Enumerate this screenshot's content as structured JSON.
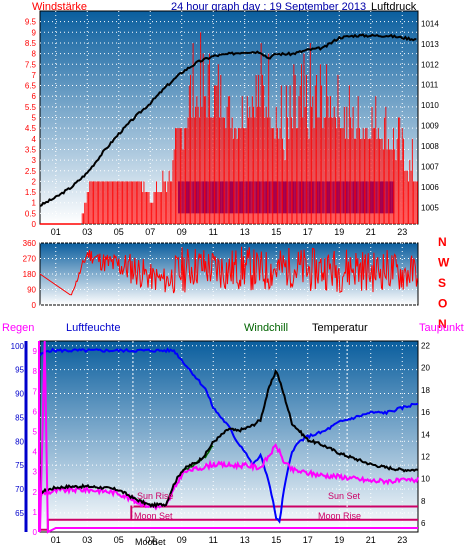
{
  "header": {
    "left_label": "Windstärke",
    "title": "24 hour graph day : 19 September 2013",
    "right_label": "Luftdruck"
  },
  "colors": {
    "wind": "#ff0000",
    "gust_blue": "#0000dd",
    "pressure": "#000000",
    "humidity": "#0000ff",
    "windchill": "#006400",
    "temperature": "#000000",
    "dewpoint": "#ff00ff",
    "sun": "#cc0066",
    "moon": "#cc0066",
    "grid": "#ffffff",
    "bg_top": "#0a5e9e",
    "bg_bottom": "#ffffff"
  },
  "time_ticks": [
    "01",
    "03",
    "05",
    "07",
    "09",
    "11",
    "13",
    "15",
    "17",
    "19",
    "21",
    "23"
  ],
  "chart_data": [
    {
      "id": "wind-pressure",
      "type": "bar",
      "title": "24 hour graph day : 19 September 2013",
      "left_axis": {
        "label": "Windstärke",
        "range": [
          0,
          10
        ],
        "ticks": [
          "0",
          "0.5",
          "1",
          "1.5",
          "2",
          "2.5",
          "3",
          "3.5",
          "4",
          "4.5",
          "5",
          "5.5",
          "6",
          "6.5",
          "7",
          "7.5",
          "8",
          "8.5",
          "9",
          "9.5"
        ]
      },
      "right_axis": {
        "label": "Luftdruck",
        "range": [
          1004.2,
          1014.6
        ],
        "ticks": [
          "1005",
          "1006",
          "1007",
          "1008",
          "1009",
          "1010",
          "1011",
          "1012",
          "1013",
          "1014"
        ]
      },
      "series": [
        {
          "name": "Windstärke",
          "axis": "left",
          "color": "#ff0000",
          "x": [
            0,
            2.6,
            3.2,
            4.5,
            5.5,
            6.2,
            7.2,
            8.5,
            9.5,
            10.5,
            11.5,
            12.5,
            13.5,
            14.5,
            15.5,
            16.5,
            17.5,
            18.5,
            19.5,
            20.5,
            21.5,
            22.5,
            23.5
          ],
          "y": [
            0,
            0,
            2,
            2,
            2,
            2,
            1,
            2,
            5,
            5,
            5,
            4,
            5,
            5,
            3,
            4,
            4,
            5,
            4,
            4,
            4,
            3,
            2
          ],
          "gust": [
            0,
            0,
            2,
            2,
            2,
            2,
            2,
            4,
            9,
            9,
            8,
            6,
            9,
            9,
            7,
            8,
            9,
            7,
            7,
            6,
            7,
            6,
            4
          ]
        },
        {
          "name": "Luftdruck",
          "axis": "right",
          "color": "#000000",
          "x": [
            0,
            1,
            2,
            3,
            4,
            5,
            6,
            7,
            8,
            9,
            10,
            11,
            12,
            13,
            14,
            14.5,
            15,
            16,
            17,
            18,
            19,
            20,
            21,
            22,
            23,
            24
          ],
          "y": [
            1005.1,
            1005.5,
            1006.0,
            1006.7,
            1007.7,
            1008.6,
            1009.4,
            1010.1,
            1010.9,
            1011.6,
            1012.1,
            1012.4,
            1012.5,
            1012.6,
            1012.6,
            1012.3,
            1012.5,
            1012.5,
            1012.7,
            1012.8,
            1013.3,
            1013.4,
            1013.4,
            1013.4,
            1013.3,
            1013.2
          ]
        }
      ]
    },
    {
      "id": "wind-direction",
      "type": "line",
      "left_axis": {
        "range": [
          0,
          360
        ],
        "ticks": [
          "0",
          "90",
          "180",
          "270",
          "360"
        ]
      },
      "direction_labels": [
        "N",
        "W",
        "S",
        "O",
        "N"
      ],
      "series": [
        {
          "name": "Windrichtung",
          "color": "#ff0000",
          "x": [
            0,
            2,
            3,
            4,
            5,
            6,
            7,
            8,
            9,
            10,
            11,
            12,
            13,
            14,
            15,
            16,
            17,
            18,
            19,
            20,
            21,
            22,
            23,
            24
          ],
          "y": [
            180,
            60,
            300,
            250,
            230,
            210,
            160,
            140,
            200,
            230,
            210,
            200,
            220,
            190,
            210,
            220,
            200,
            210,
            200,
            220,
            190,
            210,
            180,
            200
          ],
          "amplitude": [
            0,
            0,
            40,
            60,
            80,
            100,
            80,
            80,
            140,
            120,
            120,
            130,
            130,
            130,
            120,
            120,
            130,
            120,
            130,
            130,
            120,
            120,
            110,
            100
          ]
        }
      ]
    },
    {
      "id": "humidity-temp",
      "type": "line",
      "legend": [
        "Regen",
        "Luftfeuchte",
        "Windchill",
        "Temperatur",
        "Taupunkt"
      ],
      "left_axis": {
        "label": "Luftfeuchte",
        "range": [
          61,
          101
        ],
        "ticks": [
          "65",
          "70",
          "75",
          "80",
          "85",
          "90",
          "95",
          "100"
        ]
      },
      "right_axis": {
        "range": [
          5.2,
          22.4
        ],
        "ticks": [
          "6",
          "8",
          "10",
          "12",
          "14",
          "16",
          "18",
          "20",
          "22"
        ]
      },
      "rain_axis": {
        "label": "Regen",
        "range": [
          0,
          9.5
        ],
        "ticks": [
          "0",
          "1",
          "2",
          "3",
          "4",
          "5",
          "6",
          "7",
          "8",
          "9"
        ]
      },
      "series": [
        {
          "name": "Luftfeuchte",
          "axis": "left",
          "color": "#0000ff",
          "x": [
            0,
            0.5,
            1,
            3,
            5,
            7,
            8.5,
            9.5,
            10.5,
            11,
            12,
            12.5,
            13,
            13.5,
            14,
            14.5,
            15,
            15.2,
            15.5,
            16,
            16.5,
            17,
            18,
            19,
            20,
            21,
            22,
            23,
            24
          ],
          "y": [
            98,
            99,
            99,
            99,
            99,
            99,
            99,
            95,
            91,
            87,
            83,
            80,
            78,
            75,
            77,
            72,
            64,
            63,
            70,
            78,
            80,
            81,
            82,
            84,
            85,
            86,
            86,
            87,
            88
          ]
        },
        {
          "name": "Temperatur",
          "axis": "right",
          "color": "#000000",
          "x": [
            0,
            1,
            2,
            3,
            4,
            5,
            6,
            7,
            8,
            8.5,
            9,
            9.5,
            10,
            10.5,
            11,
            12,
            12.5,
            13,
            13.5,
            14,
            14.5,
            15,
            15.5,
            16,
            17,
            18,
            19,
            20,
            21,
            22,
            23,
            24
          ],
          "y": [
            8.8,
            9.2,
            9.3,
            9.3,
            9.2,
            9.0,
            8.2,
            7.6,
            7.7,
            9.5,
            10.7,
            11.2,
            11.5,
            12.2,
            13.3,
            14.5,
            14.3,
            14.5,
            14.8,
            15.3,
            18.0,
            19.8,
            17.5,
            15.0,
            13.5,
            13.0,
            12.3,
            11.8,
            11.3,
            11.0,
            10.8,
            10.8
          ]
        },
        {
          "name": "Windchill",
          "axis": "right",
          "color": "#006400",
          "x": [
            9,
            9.5,
            10,
            10.5,
            11
          ],
          "y": [
            10.7,
            11.0,
            11.5,
            12.0,
            13.0
          ]
        },
        {
          "name": "Taupunkt",
          "axis": "right",
          "color": "#ff00ff",
          "x": [
            0,
            1,
            2,
            3,
            4,
            5,
            6,
            7,
            8,
            8.5,
            9,
            9.5,
            10,
            11,
            12,
            13,
            14,
            14.5,
            15,
            15.5,
            16,
            17,
            18,
            19,
            20,
            21,
            22,
            23,
            24
          ],
          "y": [
            8.6,
            8.9,
            9.0,
            9.0,
            8.9,
            8.7,
            8.0,
            7.5,
            7.5,
            9.0,
            10.4,
            10.8,
            10.9,
            11.3,
            11.2,
            11.2,
            11.0,
            12.0,
            13.0,
            11.5,
            10.8,
            10.5,
            10.3,
            10.2,
            10.0,
            9.8,
            9.8,
            9.8,
            9.9
          ]
        },
        {
          "name": "Regen",
          "axis": "rain",
          "color": "#ff00ff",
          "x": [
            0,
            0.3,
            0.5,
            1,
            24
          ],
          "y": [
            0,
            9.5,
            0,
            0.2,
            0.2
          ]
        }
      ],
      "annotations": {
        "sun_rise": "Sun Rise",
        "sun_set": "Sun Set",
        "moon_set": "Moon Set",
        "moon_rise": "Moon Rise",
        "moon_label": "Moon",
        "sunset_label": "Set"
      }
    }
  ]
}
